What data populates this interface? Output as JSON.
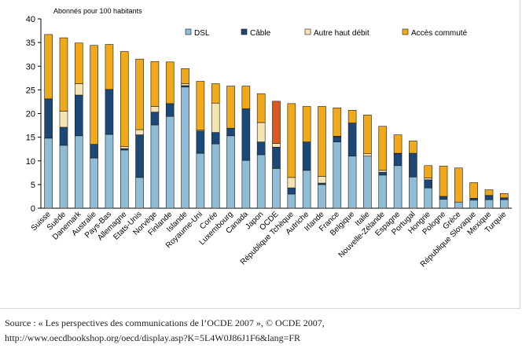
{
  "chart_data": {
    "type": "bar",
    "stacked": true,
    "title": "",
    "ylabel": "Abonnés pour 100 habitants",
    "xlabel": "",
    "ylim": [
      0,
      40
    ],
    "yticks": [
      0,
      5,
      10,
      15,
      20,
      25,
      30,
      35,
      40
    ],
    "grid": false,
    "legend_position": "top-right",
    "categories": [
      "Suisse",
      "Suède",
      "Danemark",
      "Australie",
      "Pays-Bas",
      "Allemagne",
      "Etats-Unis",
      "Norvège",
      "Finlande",
      "Islande",
      "Royaume-Uni",
      "Corée",
      "Luxembourg",
      "Canada",
      "Japon",
      "OCDE",
      "République Tchèque",
      "Autriche",
      "Irlande",
      "France",
      "Belgique",
      "Italie",
      "Nouvelle-Zélande",
      "Espagne",
      "Portugal",
      "Hongrie",
      "Pologne",
      "Grèce",
      "République Slovaque",
      "Mexique",
      "Turquie"
    ],
    "highlight_category": "OCDE",
    "series": [
      {
        "name": "DSL",
        "color": "#8fbcd6",
        "values": [
          14.8,
          13.3,
          15.3,
          10.6,
          15.6,
          12.3,
          6.5,
          17.6,
          19.4,
          25.6,
          11.6,
          13.6,
          15.3,
          10.1,
          11.3,
          8.4,
          3.0,
          8.0,
          5.0,
          14.0,
          11.0,
          11.0,
          7.0,
          9.0,
          6.6,
          4.3,
          1.9,
          1.3,
          1.7,
          1.8,
          1.8
        ]
      },
      {
        "name": "Câble",
        "color": "#1b4876",
        "values": [
          8.3,
          3.8,
          8.6,
          2.9,
          9.5,
          0.3,
          9.0,
          2.7,
          2.7,
          0.3,
          4.7,
          2.4,
          1.6,
          10.9,
          2.7,
          4.5,
          1.3,
          6.0,
          0.3,
          1.1,
          7.0,
          0.0,
          0.6,
          2.5,
          5.0,
          1.7,
          0.6,
          0.0,
          0.4,
          0.9,
          0.4
        ]
      },
      {
        "name": "Autre haut débit",
        "color": "#f4e3b3",
        "values": [
          0.0,
          3.4,
          2.4,
          0.0,
          0.0,
          0.4,
          1.1,
          1.2,
          0.0,
          0.4,
          0.2,
          6.2,
          0.0,
          0.0,
          4.1,
          0.8,
          2.2,
          0.0,
          1.4,
          0.1,
          0.0,
          0.5,
          0.4,
          0.1,
          0.0,
          0.4,
          0.0,
          0.0,
          0.0,
          0.0,
          0.0
        ]
      },
      {
        "name": "Accès commuté",
        "color": "#f0a91d",
        "values": [
          13.6,
          15.5,
          8.6,
          20.9,
          9.5,
          20.1,
          14.9,
          9.5,
          8.8,
          3.2,
          10.3,
          4.1,
          8.9,
          4.8,
          6.1,
          8.9,
          15.6,
          7.5,
          14.8,
          6.0,
          2.7,
          8.2,
          9.3,
          3.9,
          2.6,
          2.6,
          6.4,
          7.2,
          3.3,
          1.2,
          0.9
        ]
      }
    ]
  },
  "source": {
    "line1": "Source : « Les perspectives des communications de l’OCDE 2007 », © OCDE 2007,",
    "line2": "http://www.oecdbookshop.org/oecd/display.asp?K=5L4W0J86J1F6&lang=FR"
  }
}
